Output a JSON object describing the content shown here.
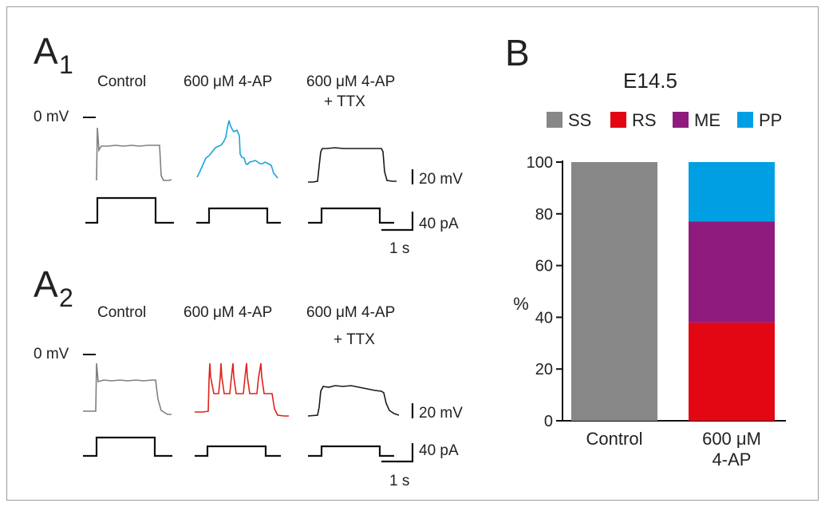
{
  "panels": {
    "a1": {
      "letter": "A",
      "subscript": "1",
      "columns": [
        "Control",
        "600 μM 4-AP",
        "600 μM 4-AP"
      ],
      "column3_line2": "+ TTX",
      "zero_label": "0 mV",
      "scale_voltage": "20 mV",
      "scale_current": "40 pA",
      "scale_time": "1 s",
      "trace_colors": [
        "#7f7f7f",
        "#1aa3d9",
        "#1a1a1a"
      ]
    },
    "a2": {
      "letter": "A",
      "subscript": "2",
      "columns": [
        "Control",
        "600 μM 4-AP",
        "600 μM 4-AP"
      ],
      "column3_line2": "+ TTX",
      "zero_label": "0 mV",
      "scale_voltage": "20 mV",
      "scale_current": "40 pA",
      "scale_time": "1 s",
      "trace_colors": [
        "#7f7f7f",
        "#e0221b",
        "#1a1a1a"
      ]
    },
    "b": {
      "letter": "B"
    }
  },
  "chart_data": {
    "type": "bar",
    "stacked": true,
    "title": "E14.5",
    "ylabel": "%",
    "xlabel": "",
    "ylim": [
      0,
      100
    ],
    "yticks": [
      0,
      20,
      40,
      60,
      80,
      100
    ],
    "categories": [
      "Control",
      "600 μM 4-AP"
    ],
    "category_labels": [
      [
        "Control"
      ],
      [
        "600 μM",
        "4-AP"
      ]
    ],
    "legend_position": "top",
    "grid": false,
    "series": [
      {
        "name": "SS",
        "color": "#878787",
        "values": [
          100,
          0
        ]
      },
      {
        "name": "RS",
        "color": "#e30613",
        "values": [
          0,
          38
        ]
      },
      {
        "name": "ME",
        "color": "#8f1b7f",
        "values": [
          0,
          39
        ]
      },
      {
        "name": "PP",
        "color": "#009fe3",
        "values": [
          0,
          23
        ]
      }
    ]
  }
}
